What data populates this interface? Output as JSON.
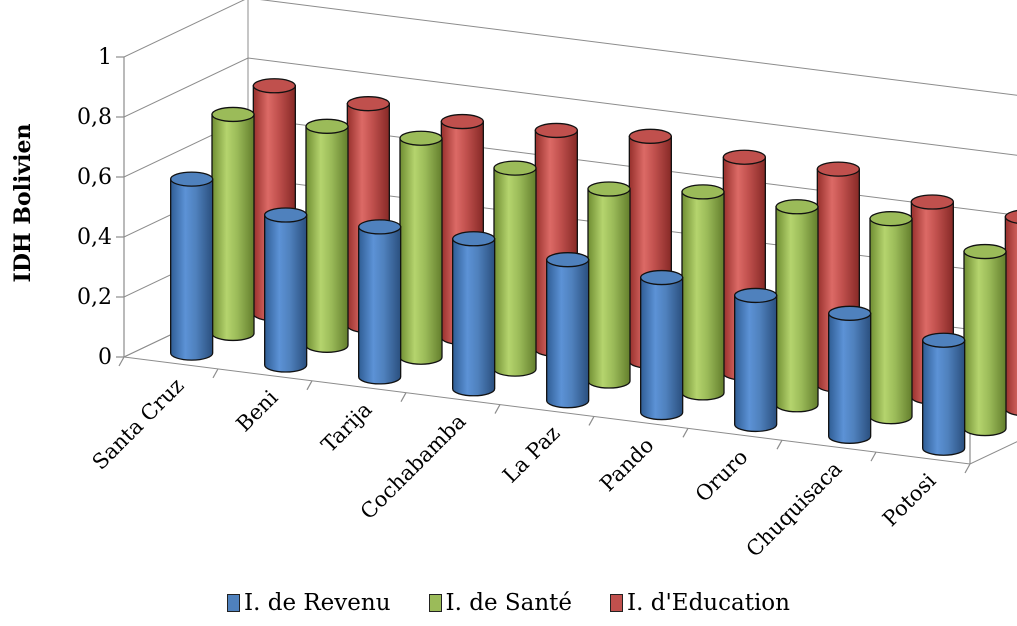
{
  "chart_data": {
    "type": "bar",
    "style": "3d-cylinder",
    "ylabel": "IDH Bolivien",
    "ylim": [
      0,
      1
    ],
    "yticks": [
      "0",
      "0,2",
      "0,4",
      "0,6",
      "0,8",
      "1"
    ],
    "categories": [
      "Santa Cruz",
      "Beni",
      "Tarija",
      "Cochabamba",
      "La Paz",
      "Pando",
      "Oruro",
      "Chuquisaca",
      "Potosi"
    ],
    "series": [
      {
        "name": "I. de Revenu",
        "color": "#4f81bd",
        "values": [
          0.58,
          0.5,
          0.5,
          0.5,
          0.47,
          0.45,
          0.43,
          0.41,
          0.36
        ]
      },
      {
        "name": "I. de Santé",
        "color": "#9bbb59",
        "values": [
          0.73,
          0.73,
          0.73,
          0.67,
          0.64,
          0.67,
          0.66,
          0.66,
          0.59
        ]
      },
      {
        "name": "I. d'Education",
        "color": "#c0504d",
        "values": [
          0.76,
          0.74,
          0.72,
          0.73,
          0.75,
          0.72,
          0.72,
          0.65,
          0.64
        ]
      }
    ],
    "legend_position": "bottom",
    "grid": true
  }
}
